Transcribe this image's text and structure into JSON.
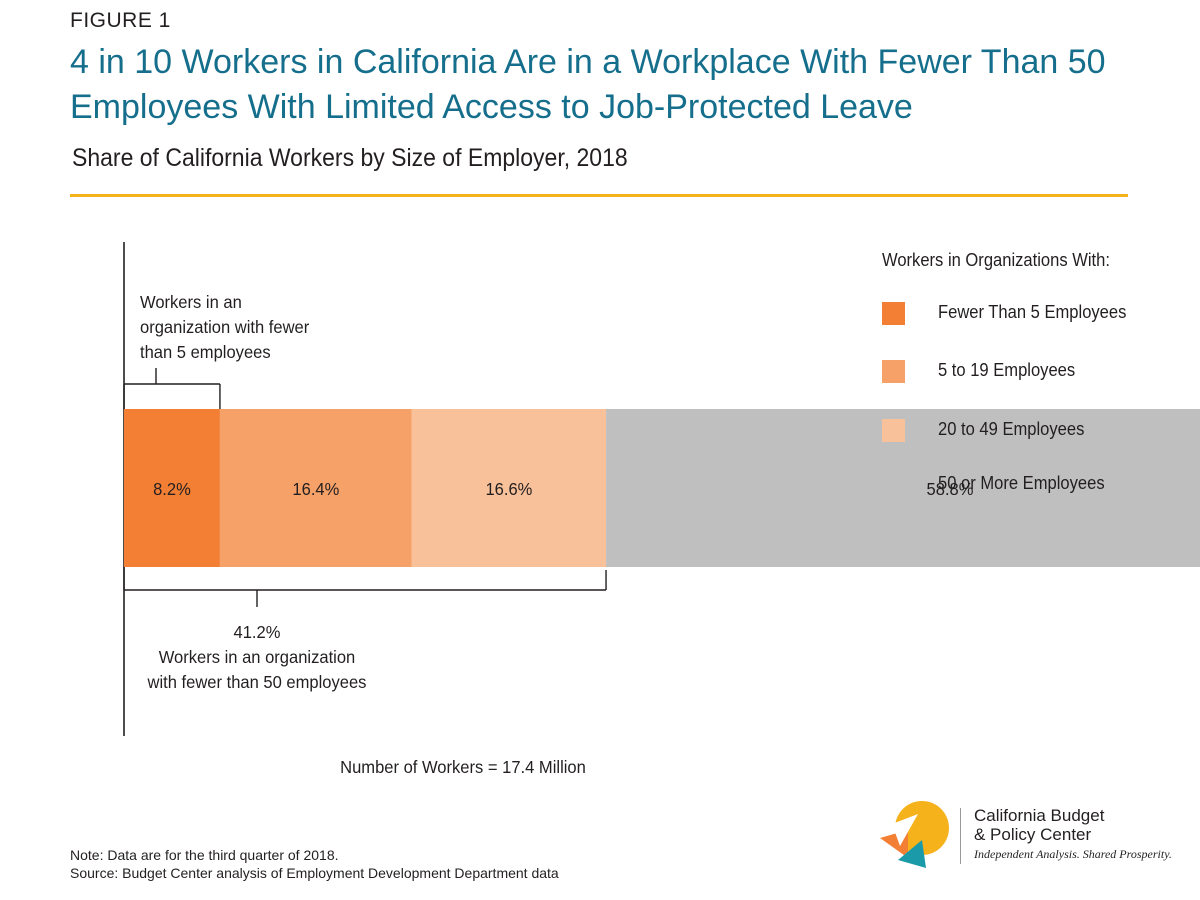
{
  "header": {
    "figure_label": "FIGURE 1",
    "title": "4 in 10 Workers in California Are in a Workplace With Fewer Than 50 Employees With Limited Access to Job-Protected Leave",
    "subtitle": "Share of California Workers by Size of Employer, 2018"
  },
  "chart_data": {
    "type": "bar",
    "orientation": "horizontal",
    "stacked": true,
    "unit": "percent",
    "xlim": [
      0,
      100
    ],
    "grid": false,
    "legend_placement": "right",
    "segments": [
      {
        "name": "Fewer Than 5 Employees",
        "value": 8.2,
        "label": "8.2%",
        "color": "#f37f35"
      },
      {
        "name": "5 to 19 Employees",
        "value": 16.4,
        "label": "16.4%",
        "color": "#f6a168"
      },
      {
        "name": "20 to 49 Employees",
        "value": 16.6,
        "label": "16.6%",
        "color": "#f9c19a"
      },
      {
        "name": "50 or More Employees",
        "value": 58.8,
        "label": "58.8%",
        "color": "#bfbfbf"
      }
    ],
    "annotations": {
      "top": {
        "lines": [
          "Workers in an",
          "organization with fewer",
          "than 5 employees"
        ]
      },
      "bottom": {
        "lines": [
          "41.2%",
          "Workers in an organization",
          "with fewer than 50 employees"
        ]
      }
    },
    "total_label": "Number of Workers = 17.4 Million"
  },
  "legend": {
    "title": "Workers in Organizations With:"
  },
  "footer": {
    "note": "Note: Data are for the third quarter of 2018.",
    "source": "Source: Budget Center analysis of Employment Development Department data"
  },
  "logo": {
    "name_line1": "California Budget",
    "name_line2": "& Policy Center",
    "tagline": "Independent Analysis. Shared Prosperity.",
    "colors": {
      "yellow": "#f6b21b",
      "orange": "#f37f35",
      "teal": "#1b9aaa"
    }
  }
}
